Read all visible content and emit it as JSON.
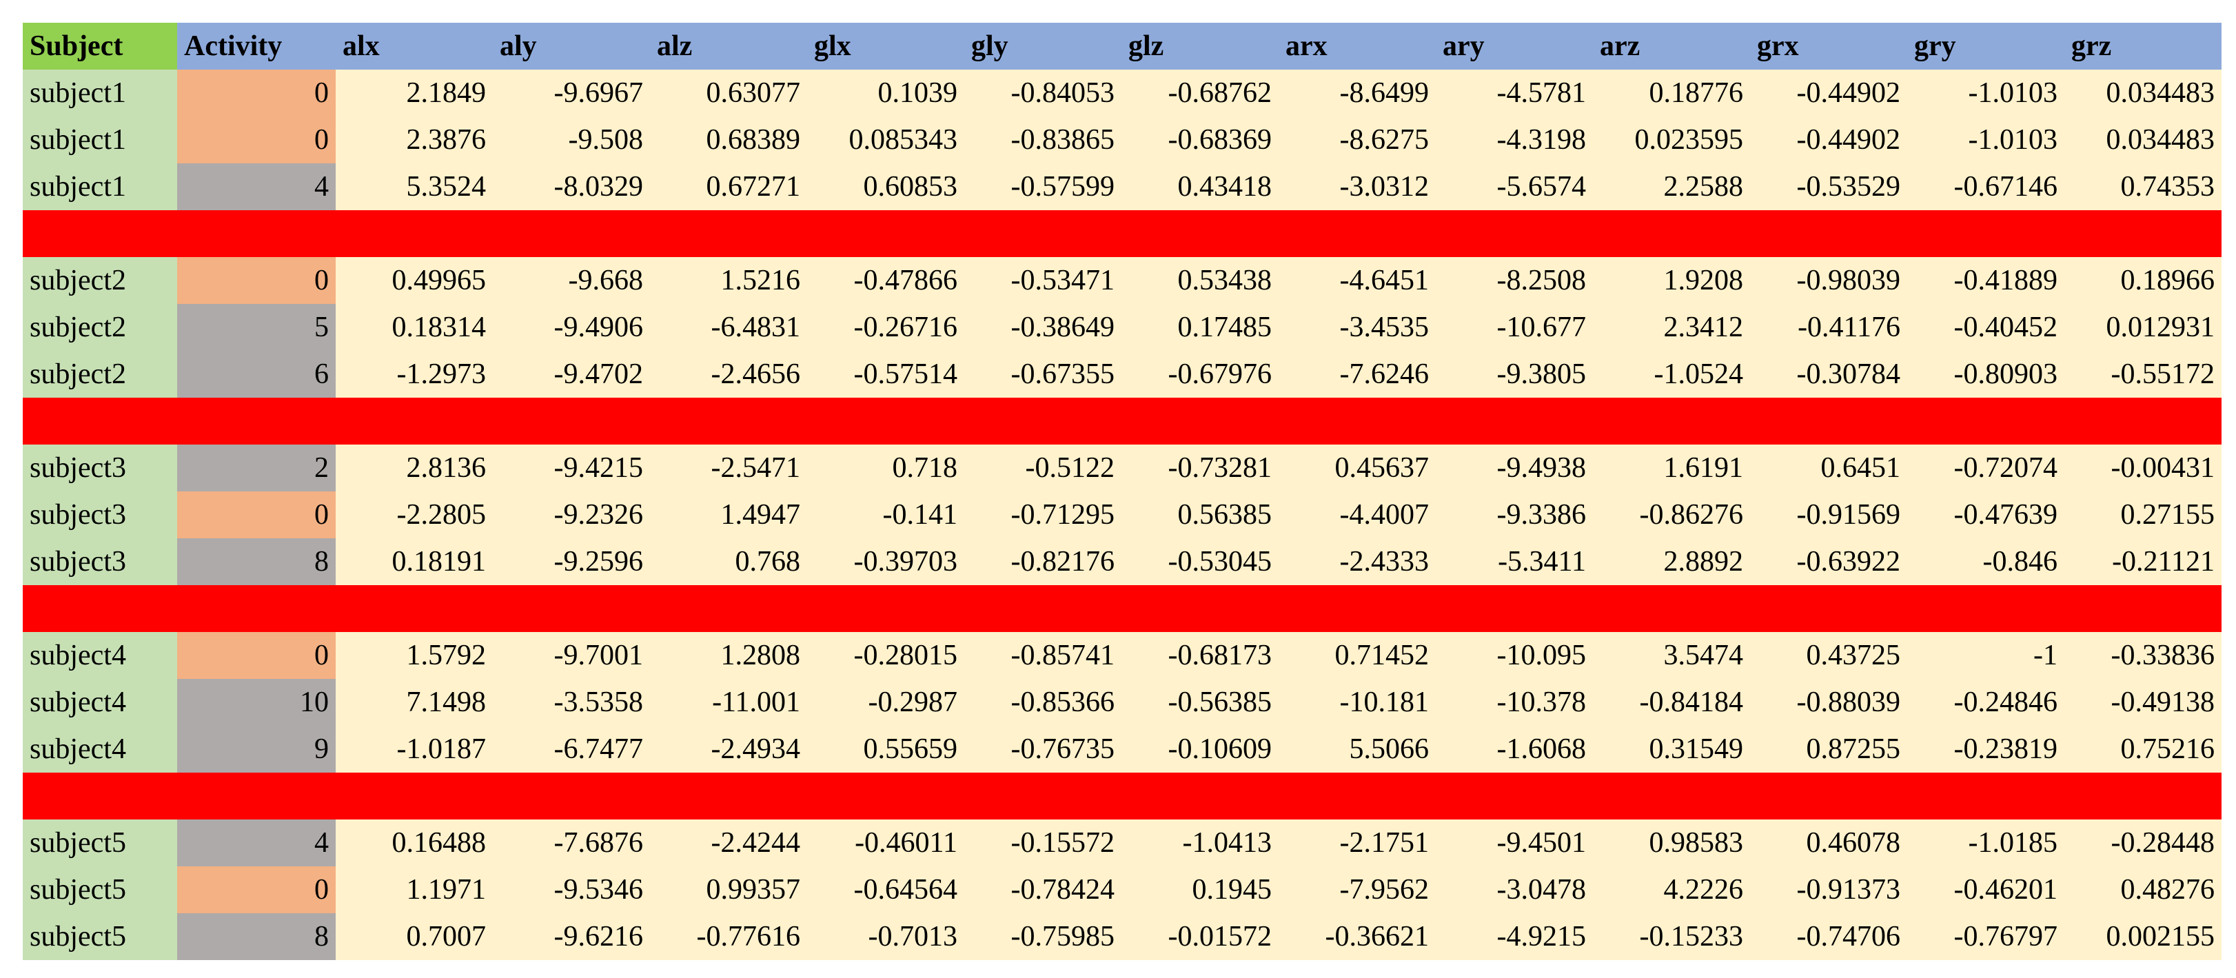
{
  "table": {
    "header": [
      "Subject",
      "Activity",
      "alx",
      "aly",
      "alz",
      "glx",
      "gly",
      "glz",
      "arx",
      "ary",
      "arz",
      "grx",
      "gry",
      "grz"
    ],
    "groups": [
      {
        "rows": [
          {
            "subject": "subject1",
            "activity": "0",
            "activity_color": "#f4b183",
            "values": [
              "2.1849",
              "-9.6967",
              "0.63077",
              "0.1039",
              "-0.84053",
              "-0.68762",
              "-8.6499",
              "-4.5781",
              "0.18776",
              "-0.44902",
              "-1.0103",
              "0.034483"
            ]
          },
          {
            "subject": "subject1",
            "activity": "0",
            "activity_color": "#f4b183",
            "values": [
              "2.3876",
              "-9.508",
              "0.68389",
              "0.085343",
              "-0.83865",
              "-0.68369",
              "-8.6275",
              "-4.3198",
              "0.023595",
              "-0.44902",
              "-1.0103",
              "0.034483"
            ]
          },
          {
            "subject": "subject1",
            "activity": "4",
            "activity_color": "#aeaaaa",
            "values": [
              "5.3524",
              "-8.0329",
              "0.67271",
              "0.60853",
              "-0.57599",
              "0.43418",
              "-3.0312",
              "-5.6574",
              "2.2588",
              "-0.53529",
              "-0.67146",
              "0.74353"
            ]
          }
        ]
      },
      {
        "rows": [
          {
            "subject": "subject2",
            "activity": "0",
            "activity_color": "#f4b183",
            "values": [
              "0.49965",
              "-9.668",
              "1.5216",
              "-0.47866",
              "-0.53471",
              "0.53438",
              "-4.6451",
              "-8.2508",
              "1.9208",
              "-0.98039",
              "-0.41889",
              "0.18966"
            ]
          },
          {
            "subject": "subject2",
            "activity": "5",
            "activity_color": "#aeaaaa",
            "values": [
              "0.18314",
              "-9.4906",
              "-6.4831",
              "-0.26716",
              "-0.38649",
              "0.17485",
              "-3.4535",
              "-10.677",
              "2.3412",
              "-0.41176",
              "-0.40452",
              "0.012931"
            ]
          },
          {
            "subject": "subject2",
            "activity": "6",
            "activity_color": "#aeaaaa",
            "values": [
              "-1.2973",
              "-9.4702",
              "-2.4656",
              "-0.57514",
              "-0.67355",
              "-0.67976",
              "-7.6246",
              "-9.3805",
              "-1.0524",
              "-0.30784",
              "-0.80903",
              "-0.55172"
            ]
          }
        ]
      },
      {
        "rows": [
          {
            "subject": "subject3",
            "activity": "2",
            "activity_color": "#aeaaaa",
            "values": [
              "2.8136",
              "-9.4215",
              "-2.5471",
              "0.718",
              "-0.5122",
              "-0.73281",
              "0.45637",
              "-9.4938",
              "1.6191",
              "0.6451",
              "-0.72074",
              "-0.00431"
            ]
          },
          {
            "subject": "subject3",
            "activity": "0",
            "activity_color": "#f4b183",
            "values": [
              "-2.2805",
              "-9.2326",
              "1.4947",
              "-0.141",
              "-0.71295",
              "0.56385",
              "-4.4007",
              "-9.3386",
              "-0.86276",
              "-0.91569",
              "-0.47639",
              "0.27155"
            ]
          },
          {
            "subject": "subject3",
            "activity": "8",
            "activity_color": "#aeaaaa",
            "values": [
              "0.18191",
              "-9.2596",
              "0.768",
              "-0.39703",
              "-0.82176",
              "-0.53045",
              "-2.4333",
              "-5.3411",
              "2.8892",
              "-0.63922",
              "-0.846",
              "-0.21121"
            ]
          }
        ]
      },
      {
        "rows": [
          {
            "subject": "subject4",
            "activity": "0",
            "activity_color": "#f4b183",
            "values": [
              "1.5792",
              "-9.7001",
              "1.2808",
              "-0.28015",
              "-0.85741",
              "-0.68173",
              "0.71452",
              "-10.095",
              "3.5474",
              "0.43725",
              "-1",
              "-0.33836"
            ]
          },
          {
            "subject": "subject4",
            "activity": "10",
            "activity_color": "#aeaaaa",
            "values": [
              "7.1498",
              "-3.5358",
              "-11.001",
              "-0.2987",
              "-0.85366",
              "-0.56385",
              "-10.181",
              "-10.378",
              "-0.84184",
              "-0.88039",
              "-0.24846",
              "-0.49138"
            ]
          },
          {
            "subject": "subject4",
            "activity": "9",
            "activity_color": "#aeaaaa",
            "values": [
              "-1.0187",
              "-6.7477",
              "-2.4934",
              "0.55659",
              "-0.76735",
              "-0.10609",
              "5.5066",
              "-1.6068",
              "0.31549",
              "0.87255",
              "-0.23819",
              "0.75216"
            ]
          }
        ]
      },
      {
        "rows": [
          {
            "subject": "subject5",
            "activity": "4",
            "activity_color": "#aeaaaa",
            "values": [
              "0.16488",
              "-7.6876",
              "-2.4244",
              "-0.46011",
              "-0.15572",
              "-1.0413",
              "-2.1751",
              "-9.4501",
              "0.98583",
              "0.46078",
              "-1.0185",
              "-0.28448"
            ]
          },
          {
            "subject": "subject5",
            "activity": "0",
            "activity_color": "#f4b183",
            "values": [
              "1.1971",
              "-9.5346",
              "0.99357",
              "-0.64564",
              "-0.78424",
              "0.1945",
              "-7.9562",
              "-3.0478",
              "4.2226",
              "-0.91373",
              "-0.46201",
              "0.48276"
            ]
          },
          {
            "subject": "subject5",
            "activity": "8",
            "activity_color": "#aeaaaa",
            "values": [
              "0.7007",
              "-9.6216",
              "-0.77616",
              "-0.7013",
              "-0.75985",
              "-0.01572",
              "-0.36621",
              "-4.9215",
              "-0.15233",
              "-0.74706",
              "-0.76797",
              "0.002155"
            ]
          }
        ]
      }
    ]
  }
}
